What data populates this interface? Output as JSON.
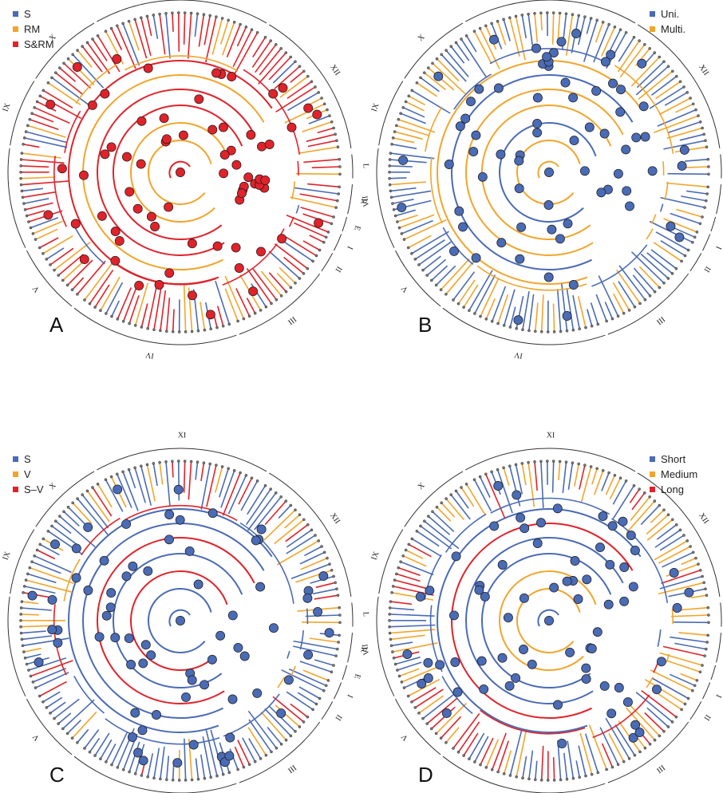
{
  "colors": {
    "blue": "#4a6bb5",
    "orange": "#f2a52b",
    "red": "#e0222a",
    "node_outline": "#1a1a1a",
    "arc": "#333333"
  },
  "clade_labels": [
    "L",
    "R",
    "E",
    "I",
    "II",
    "III",
    "IV",
    "V",
    "VII",
    "IX",
    "X",
    "XI",
    "XII"
  ],
  "panels": [
    {
      "letter": "A",
      "legend": [
        {
          "label": "S",
          "color": "#4a6bb5"
        },
        {
          "label": "RM",
          "color": "#f2a52b"
        },
        {
          "label": "S&RM",
          "color": "#e0222a"
        }
      ]
    },
    {
      "letter": "B",
      "legend": [
        {
          "label": "Uni.",
          "color": "#4a6bb5"
        },
        {
          "label": "Multi.",
          "color": "#f2a52b"
        }
      ]
    },
    {
      "letter": "C",
      "legend": [
        {
          "label": "S",
          "color": "#4a6bb5"
        },
        {
          "label": "V",
          "color": "#f2a52b"
        },
        {
          "label": "S–V",
          "color": "#e0222a"
        }
      ]
    },
    {
      "letter": "D",
      "legend": [
        {
          "label": "Short",
          "color": "#4a6bb5"
        },
        {
          "label": "Medium",
          "color": "#f2a52b"
        },
        {
          "label": "Long",
          "color": "#e0222a"
        }
      ]
    }
  ]
}
